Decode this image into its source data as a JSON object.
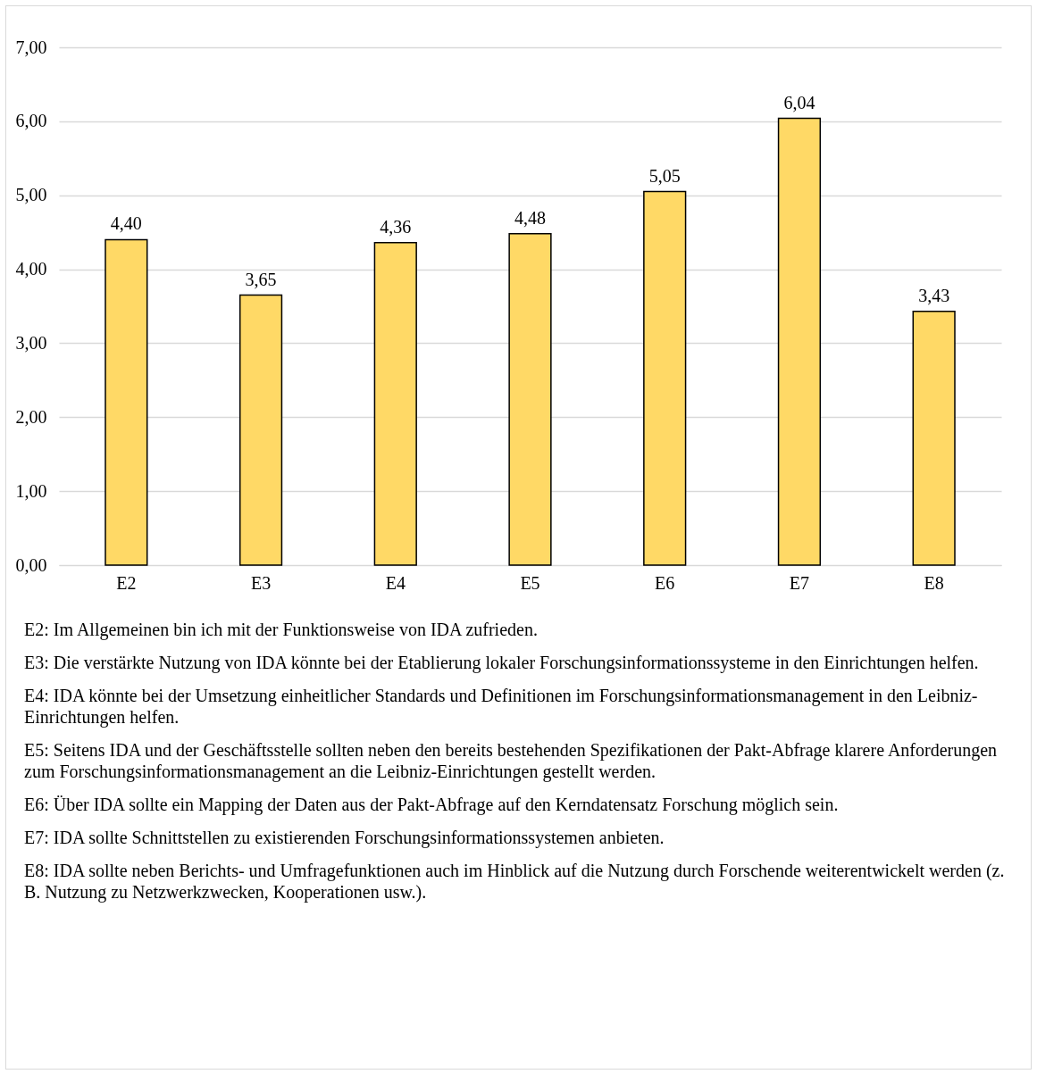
{
  "chart_data": {
    "type": "bar",
    "categories": [
      "E2",
      "E3",
      "E4",
      "E5",
      "E6",
      "E7",
      "E8"
    ],
    "values": [
      4.4,
      3.65,
      4.36,
      4.48,
      5.05,
      6.04,
      3.43
    ],
    "value_labels": [
      "4,40",
      "3,65",
      "4,36",
      "4,48",
      "5,05",
      "6,04",
      "3,43"
    ],
    "color": "#ffd966",
    "ylim": [
      0,
      7
    ],
    "yticks": [
      {
        "value": 0,
        "label": "0,00"
      },
      {
        "value": 1,
        "label": "1,00"
      },
      {
        "value": 2,
        "label": "2,00"
      },
      {
        "value": 3,
        "label": "3,00"
      },
      {
        "value": 4,
        "label": "4,00"
      },
      {
        "value": 5,
        "label": "5,00"
      },
      {
        "value": 6,
        "label": "6,00"
      },
      {
        "value": 7,
        "label": "7,00"
      }
    ],
    "grid": "y",
    "annotations": [
      "E2: Im Allgemeinen bin ich mit der Funktionsweise von IDA zufrieden.",
      "E3: Die verstärkte Nutzung von IDA könnte bei der Etablierung lokaler Forschungsinformationssysteme in den Einrichtungen helfen.",
      "E4: IDA könnte bei der Umsetzung einheitlicher Standards und Definitionen im Forschungsinformationsmanagement in den Leibniz-Einrichtungen helfen.",
      "E5: Seitens IDA und der Geschäftsstelle sollten neben den bereits bestehenden Spezifikationen der Pakt-Abfrage klarere Anforderungen zum Forschungsinformationsmanagement an die Leibniz-Einrichtungen gestellt werden.",
      "E6: Über IDA sollte ein Mapping der Daten aus der Pakt-Abfrage auf den Kerndatensatz Forschung möglich sein.",
      "E7: IDA sollte Schnittstellen zu existierenden Forschungsinformationssystemen anbieten.",
      "E8: IDA sollte neben Berichts- und Umfragefunktionen auch im Hinblick auf die Nutzung durch Forschende weiterentwickelt werden (z. B. Nutzung zu Netzwerkzwecken, Kooperationen usw.)."
    ]
  }
}
